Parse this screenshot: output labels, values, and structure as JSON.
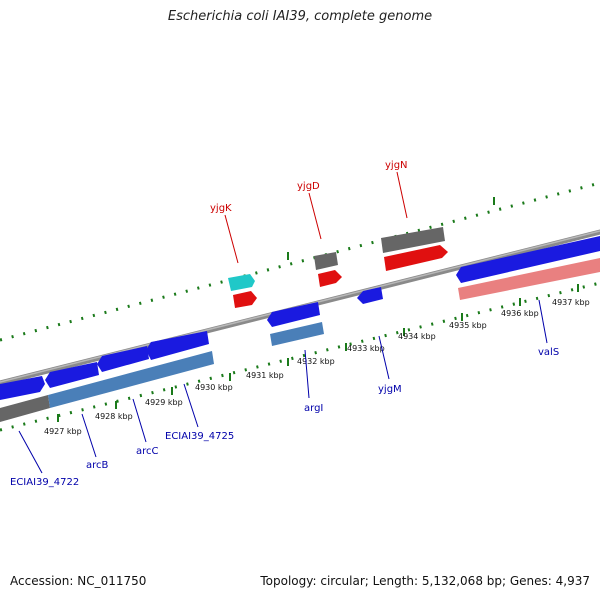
{
  "title": "Escherichia coli IAI39, complete genome",
  "footer": {
    "accession": "Accession: NC_011750",
    "summary": "Topology: circular; Length: 5,132,068 bp; Genes: 4,937"
  },
  "colors": {
    "backbone": "#8a8a8a",
    "tick": "#1a7a1a",
    "forward_cds": "#e01010",
    "reverse_cds": "#1a1ae0",
    "grey_gene": "#666666",
    "cyan_gene": "#20c8c8",
    "steel_gene": "#4a7fb8",
    "pink_gene": "#e98080",
    "label_red": "#cc0000",
    "label_blue": "#0000aa"
  },
  "scale_labels": [
    "4927 kbp",
    "4928 kbp",
    "4929 kbp",
    "4930 kbp",
    "4931 kbp",
    "4932 kbp",
    "4933 kbp",
    "4934 kbp",
    "4935 kbp",
    "4936 kbp",
    "4937 kbp"
  ],
  "gene_labels_top": [
    "yjgK",
    "yjgD",
    "yjgN"
  ],
  "gene_labels_bottom": [
    "ECIAI39_4722",
    "arcB",
    "arcC",
    "ECIAI39_4725",
    "argI",
    "yjgM",
    "valS"
  ]
}
